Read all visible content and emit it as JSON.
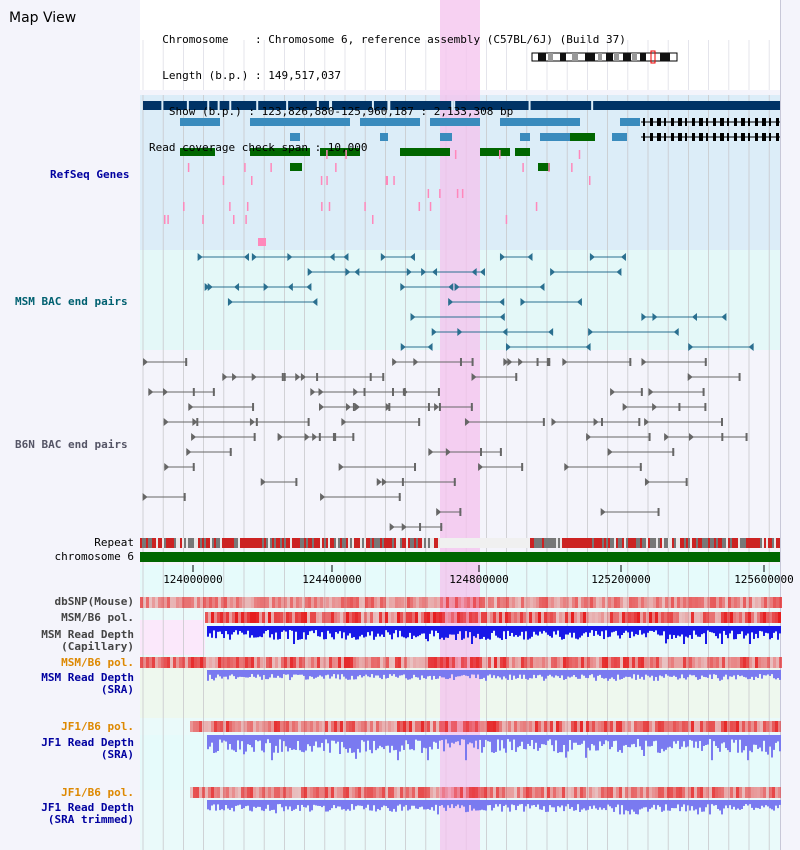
{
  "header": {
    "title": "Map View",
    "info_lines": [
      "  Chromosome    : Chromosome 6, reference assembly (C57BL/6J) (Build 37)",
      "  Length (b.p.) : 149,517,037",
      "   Show (b.p.) : 123,826,880-125,960,187 : 2,133,308 bp",
      "Read coverage check span : 10,000"
    ]
  },
  "tracks": {
    "refseq": "RefSeq Genes",
    "msm_bac": "MSM BAC end pairs",
    "b6n_bac": "B6N BAC end pairs",
    "repeat": "Repeat",
    "chromosome": "chromosome 6",
    "dbsnp": "dbSNP(Mouse)",
    "msm_b6_pol": "MSM/B6 pol.",
    "msm_depth_cap_1": "MSM Read Depth",
    "msm_depth_cap_2": "(Capillary)",
    "msm_b6_pol2": "MSM/B6 pol.",
    "msm_depth_sra_1": "MSM Read Depth",
    "msm_depth_sra_2": "(SRA)",
    "jf1_b6_pol": "JF1/B6 pol.",
    "jf1_depth_sra_1": "JF1 Read Depth",
    "jf1_depth_sra_2": "(SRA)",
    "jf1_b6_pol2": "JF1/B6 pol.",
    "jf1_depth_trim_1": "JF1 Read Depth",
    "jf1_depth_trim_2": "(SRA trimmed)"
  },
  "axis": {
    "ticks": [
      124000000,
      124400000,
      124800000,
      125200000,
      125600000
    ]
  },
  "colors": {
    "refseq_dark": "#003366",
    "refseq_mid": "#3a8bbd",
    "refseq_green": "#006600",
    "refseq_pink": "#ff88bb",
    "bac_teal": "#2a6f8f",
    "bac_grey": "#666666",
    "highlight": "#f4c2ee",
    "depth_capillary": "#1818e8",
    "depth_sra": "#7a7af0",
    "pol_red": "#ee2222",
    "label_blue": "#0000a0",
    "label_teal": "#006070",
    "label_orange": "#dd8800"
  }
}
